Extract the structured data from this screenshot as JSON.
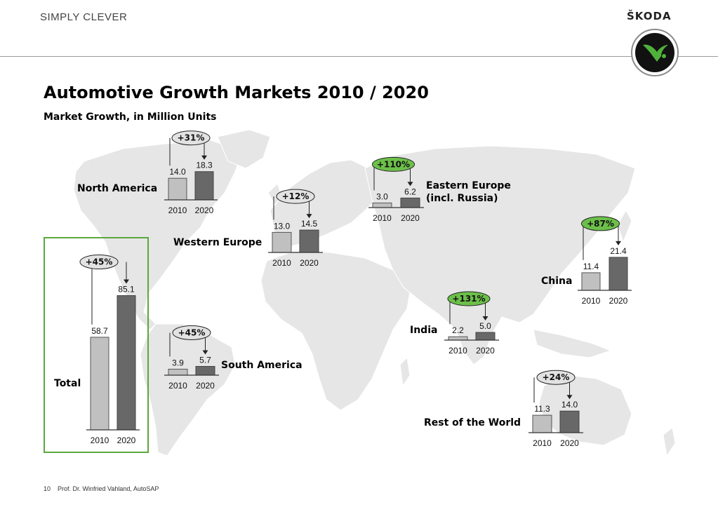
{
  "header": {
    "slogan": "SIMPLY CLEVER",
    "brand": "ŠKODA"
  },
  "title": "Automotive Growth Markets 2010 / 2020",
  "subtitle": "Market Growth, in Million Units",
  "footer": {
    "page_number": "10",
    "source": "Prof. Dr. Winfried Vahland, AutoSAP"
  },
  "colors": {
    "bar_2010": "#c0c0c0",
    "bar_2020": "#686868",
    "growth_bubble_fill": "#6cc04a",
    "neutral_bubble_fill": "#e2e2e2",
    "total_box_border": "#5aa83e",
    "map_land": "#e6e6e6"
  },
  "chart_data": [
    {
      "type": "bar",
      "name": "North America",
      "categories": [
        "2010",
        "2020"
      ],
      "values": [
        14.0,
        18.3
      ],
      "value_labels": [
        "14.0",
        "18.3"
      ],
      "growth": "+31%",
      "highlight": false
    },
    {
      "type": "bar",
      "name": "Western Europe",
      "categories": [
        "2010",
        "2020"
      ],
      "values": [
        13.0,
        14.5
      ],
      "value_labels": [
        "13.0",
        "14.5"
      ],
      "growth": "+12%",
      "highlight": false
    },
    {
      "type": "bar",
      "name": "Eastern Europe (incl. Russia)",
      "label_lines": [
        "Eastern Europe",
        "(incl. Russia)"
      ],
      "categories": [
        "2010",
        "2020"
      ],
      "values": [
        3.0,
        6.2
      ],
      "value_labels": [
        "3.0",
        "6.2"
      ],
      "growth": "+110%",
      "highlight": true
    },
    {
      "type": "bar",
      "name": "China",
      "categories": [
        "2010",
        "2020"
      ],
      "values": [
        11.4,
        21.4
      ],
      "value_labels": [
        "11.4",
        "21.4"
      ],
      "growth": "+87%",
      "highlight": true
    },
    {
      "type": "bar",
      "name": "India",
      "categories": [
        "2010",
        "2020"
      ],
      "values": [
        2.2,
        5.0
      ],
      "value_labels": [
        "2.2",
        "5.0"
      ],
      "growth": "+131%",
      "highlight": true
    },
    {
      "type": "bar",
      "name": "South America",
      "categories": [
        "2010",
        "2020"
      ],
      "values": [
        3.9,
        5.7
      ],
      "value_labels": [
        "3.9",
        "5.7"
      ],
      "growth": "+45%",
      "highlight": false
    },
    {
      "type": "bar",
      "name": "Rest of the World",
      "categories": [
        "2010",
        "2020"
      ],
      "values": [
        11.3,
        14.0
      ],
      "value_labels": [
        "11.3",
        "14.0"
      ],
      "growth": "+24%",
      "highlight": false
    },
    {
      "type": "bar",
      "name": "Total",
      "categories": [
        "2010",
        "2020"
      ],
      "values": [
        58.7,
        85.1
      ],
      "value_labels": [
        "58.7",
        "85.1"
      ],
      "growth": "+45%",
      "highlight": false
    }
  ]
}
